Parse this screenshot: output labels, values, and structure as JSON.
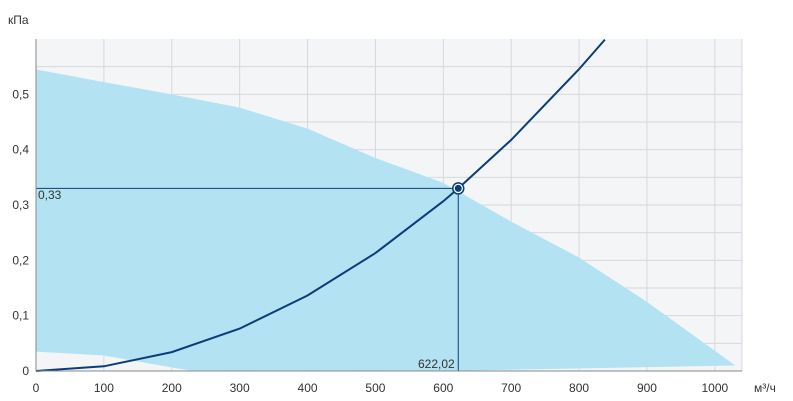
{
  "chart_data": {
    "type": "line",
    "title": "",
    "xlabel": "м³/ч",
    "ylabel": "кПа",
    "xlim": [
      0,
      1040
    ],
    "ylim": [
      0,
      0.6
    ],
    "x_ticks": [
      0,
      100,
      200,
      300,
      400,
      500,
      600,
      700,
      800,
      900,
      1000
    ],
    "y_ticks": [
      0,
      0.1,
      0.2,
      0.3,
      0.4,
      0.5
    ],
    "x_tick_labels": [
      "0",
      "100",
      "200",
      "300",
      "400",
      "500",
      "600",
      "700",
      "800",
      "900",
      "1000"
    ],
    "y_tick_labels": [
      "0",
      "0,1",
      "0,2",
      "0,3",
      "0,4",
      "0,5"
    ],
    "grid": true,
    "operating_area": {
      "upper": [
        [
          0,
          0.545
        ],
        [
          100,
          0.522
        ],
        [
          200,
          0.5
        ],
        [
          300,
          0.476
        ],
        [
          400,
          0.438
        ],
        [
          500,
          0.385
        ],
        [
          600,
          0.34
        ],
        [
          700,
          0.27
        ],
        [
          800,
          0.205
        ],
        [
          900,
          0.125
        ],
        [
          1030,
          0.01
        ]
      ],
      "lower": [
        [
          1030,
          0.01
        ],
        [
          600,
          0
        ],
        [
          230,
          0
        ],
        [
          100,
          0.028
        ],
        [
          0,
          0.035
        ]
      ]
    },
    "series": [
      {
        "x": [
          0,
          100,
          200,
          300,
          400,
          500,
          600,
          622.02,
          700,
          800,
          838
        ],
        "values": [
          0,
          0.0085,
          0.0341,
          0.0767,
          0.1364,
          0.2131,
          0.3069,
          0.33,
          0.4177,
          0.5456,
          0.599
        ]
      }
    ],
    "operating_point": {
      "x": 622.02,
      "y": 0.33,
      "x_label": "622,02",
      "y_label": "0,33"
    },
    "colors": {
      "area": "#b3e3f3",
      "curve": "#0b3d7a",
      "plot_bg": "#f4f5f7",
      "grid": "#d6d8dc"
    }
  }
}
